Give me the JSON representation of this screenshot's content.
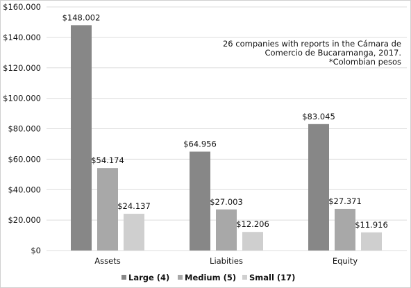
{
  "chart_data": {
    "type": "bar",
    "categories": [
      "Assets",
      "Liabities",
      "Equity"
    ],
    "series": [
      {
        "name": "Large (4)",
        "values": [
          148.002,
          64.956,
          83.045
        ],
        "labels": [
          "$148.002",
          "$64.956",
          "$83.045"
        ],
        "color": "#878787"
      },
      {
        "name": "Medium (5)",
        "values": [
          54.174,
          27.003,
          27.371
        ],
        "labels": [
          "$54.174",
          "$27.003",
          "$27.371"
        ],
        "color": "#a8a8a8"
      },
      {
        "name": "Small (17)",
        "values": [
          24.137,
          12.206,
          11.916
        ],
        "labels": [
          "$24.137",
          "$12.206",
          "$11.916"
        ],
        "color": "#cfcfcf"
      }
    ],
    "ylim": [
      0,
      160
    ],
    "yticks": [
      0,
      20,
      40,
      60,
      80,
      100,
      120,
      140,
      160
    ],
    "ytick_labels": [
      "$0",
      "$20.000",
      "$40.000",
      "$60.000",
      "$80.000",
      "$100.000",
      "$120.000",
      "$140.000",
      "$160.000"
    ],
    "annotation": [
      "26 companies with reports in the Cámara de",
      "Comercio de Bucaramanga, 2017.",
      "*Colombian pesos"
    ],
    "grid": true,
    "legend_position": "bottom",
    "gridline_color": "#dcdcdc"
  }
}
